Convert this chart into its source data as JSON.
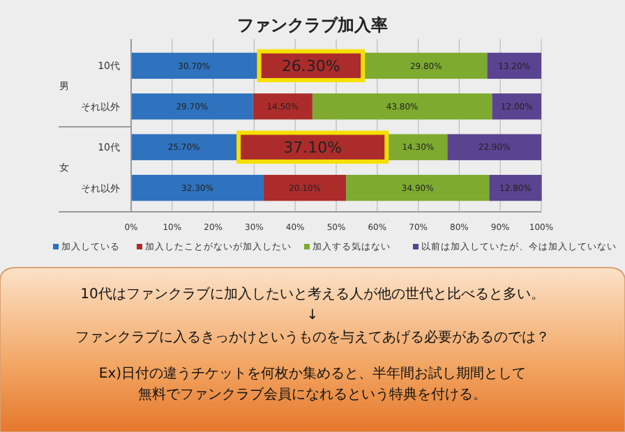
{
  "chart_data": {
    "type": "bar",
    "orientation": "horizontal",
    "stacked": true,
    "title": "ファンクラブ加入率",
    "categories": [
      "10代",
      "それ以外",
      "10代",
      "それ以外"
    ],
    "series": [
      {
        "name": "加入している",
        "color": "#2f72bd",
        "values": [
          30.7,
          29.7,
          25.7,
          32.3
        ],
        "value_labels": [
          "30.70%",
          "29.70%",
          "25.70%",
          "32.30%"
        ]
      },
      {
        "name": "加入したことがないが加入したい",
        "color": "#ac2c2c",
        "values": [
          26.3,
          14.5,
          37.1,
          20.1
        ],
        "value_labels": [
          "26.30%",
          "14.50%",
          "37.10%",
          "20.10%"
        ]
      },
      {
        "name": "加入する気はない",
        "color": "#7eab2f",
        "values": [
          29.8,
          43.8,
          14.3,
          34.9
        ],
        "value_labels": [
          "29.80%",
          "43.80%",
          "14.30%",
          "34.90%"
        ]
      },
      {
        "name": "以前は加入していたが、今は加入していない",
        "color": "#5a4390",
        "values": [
          13.2,
          12.0,
          22.9,
          12.8
        ],
        "value_labels": [
          "13.20%",
          "12.00%",
          "22.90%",
          "12.80%"
        ]
      }
    ],
    "xlim": [
      0,
      100
    ],
    "xticks": [
      {
        "value": 0,
        "label": "0%"
      },
      {
        "value": 10,
        "label": "10%"
      },
      {
        "value": 20,
        "label": "20%"
      },
      {
        "value": 30,
        "label": "30%"
      },
      {
        "value": 40,
        "label": "40%"
      },
      {
        "value": 50,
        "label": "50%"
      },
      {
        "value": 60,
        "label": "60%"
      },
      {
        "value": 70,
        "label": "70%"
      },
      {
        "value": 80,
        "label": "80%"
      },
      {
        "value": 90,
        "label": "90%"
      },
      {
        "value": 100,
        "label": "100%"
      }
    ],
    "grid": "x",
    "legend": "bottom",
    "annotations": [
      "男",
      "女",
      "10代はファンクラブに加入したいと考える人が他の世代と比べると多い。",
      "↓",
      "ファンクラブに入るきっかけというものを与えてあげる必要があるのでは？",
      "Ex)日付の違うチケットを何枚か集めると、半年間お試し期間として",
      "無料でファンクラブ会員になれるという特典を付ける。"
    ]
  }
}
